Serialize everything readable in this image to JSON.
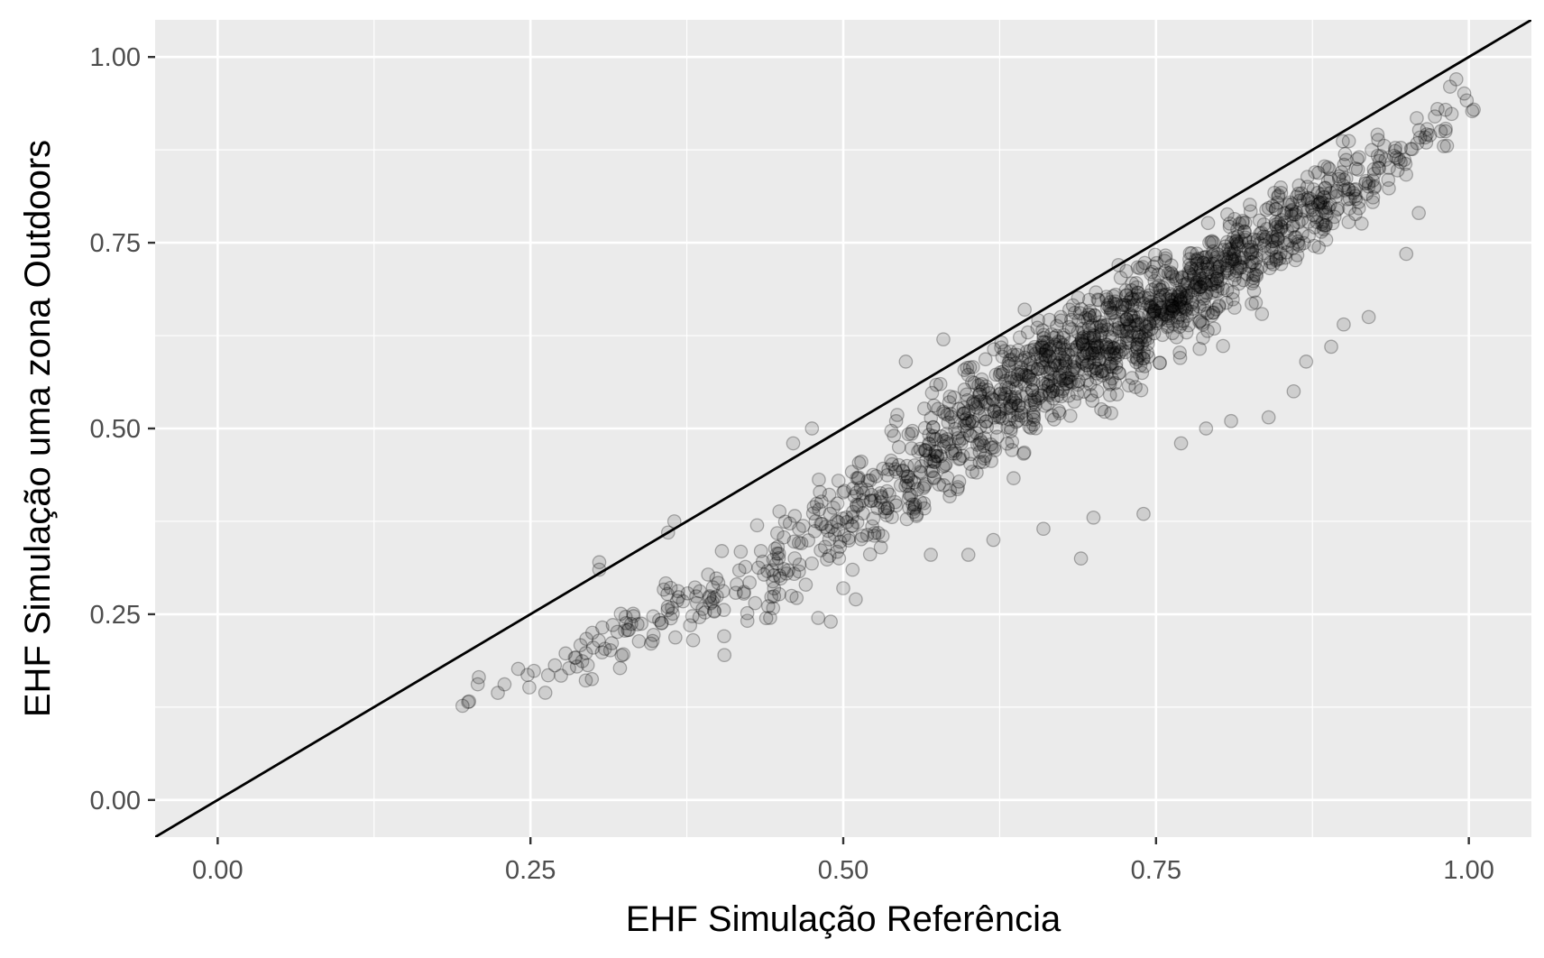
{
  "chart_data": {
    "type": "scatter",
    "title": "",
    "xlabel": "EHF Simulação Referência",
    "ylabel": "EHF Simulação uma zona Outdoors",
    "xlim": [
      -0.05,
      1.05
    ],
    "ylim": [
      -0.05,
      1.05
    ],
    "x_ticks": [
      0.0,
      0.25,
      0.5,
      0.75,
      1.0
    ],
    "x_tick_labels": [
      "0.00",
      "0.25",
      "0.50",
      "0.75",
      "1.00"
    ],
    "y_ticks": [
      0.0,
      0.25,
      0.5,
      0.75,
      1.0
    ],
    "y_tick_labels": [
      "0.00",
      "0.25",
      "0.50",
      "0.75",
      "1.00"
    ],
    "grid": true,
    "panel_background": "#ebebeb",
    "grid_color": "#ffffff",
    "point_color": "#000000",
    "point_fill_opacity": 0.12,
    "reference_line": {
      "slope": 1,
      "intercept": 0,
      "color": "#000000"
    },
    "density_bands": [
      {
        "x": 0.2,
        "y_center": 0.13,
        "spread": 0.005,
        "count": 3
      },
      {
        "x": 0.22,
        "y_center": 0.155,
        "spread": 0.01,
        "count": 4
      },
      {
        "x": 0.25,
        "y_center": 0.17,
        "spread": 0.02,
        "count": 6
      },
      {
        "x": 0.28,
        "y_center": 0.2,
        "spread": 0.03,
        "count": 12
      },
      {
        "x": 0.31,
        "y_center": 0.22,
        "spread": 0.035,
        "count": 16
      },
      {
        "x": 0.34,
        "y_center": 0.245,
        "spread": 0.035,
        "count": 18
      },
      {
        "x": 0.37,
        "y_center": 0.27,
        "spread": 0.04,
        "count": 20
      },
      {
        "x": 0.4,
        "y_center": 0.285,
        "spread": 0.04,
        "count": 22
      },
      {
        "x": 0.43,
        "y_center": 0.305,
        "spread": 0.045,
        "count": 26
      },
      {
        "x": 0.46,
        "y_center": 0.34,
        "spread": 0.05,
        "count": 32
      },
      {
        "x": 0.49,
        "y_center": 0.38,
        "spread": 0.05,
        "count": 40
      },
      {
        "x": 0.52,
        "y_center": 0.42,
        "spread": 0.055,
        "count": 50
      },
      {
        "x": 0.55,
        "y_center": 0.46,
        "spread": 0.06,
        "count": 60
      },
      {
        "x": 0.58,
        "y_center": 0.5,
        "spread": 0.06,
        "count": 75
      },
      {
        "x": 0.61,
        "y_center": 0.54,
        "spread": 0.06,
        "count": 90
      },
      {
        "x": 0.64,
        "y_center": 0.57,
        "spread": 0.06,
        "count": 110
      },
      {
        "x": 0.67,
        "y_center": 0.6,
        "spread": 0.055,
        "count": 120
      },
      {
        "x": 0.7,
        "y_center": 0.625,
        "spread": 0.055,
        "count": 130
      },
      {
        "x": 0.73,
        "y_center": 0.65,
        "spread": 0.055,
        "count": 130
      },
      {
        "x": 0.76,
        "y_center": 0.68,
        "spread": 0.05,
        "count": 120
      },
      {
        "x": 0.79,
        "y_center": 0.71,
        "spread": 0.05,
        "count": 110
      },
      {
        "x": 0.82,
        "y_center": 0.745,
        "spread": 0.045,
        "count": 95
      },
      {
        "x": 0.85,
        "y_center": 0.775,
        "spread": 0.045,
        "count": 80
      },
      {
        "x": 0.88,
        "y_center": 0.81,
        "spread": 0.04,
        "count": 65
      },
      {
        "x": 0.91,
        "y_center": 0.84,
        "spread": 0.04,
        "count": 45
      },
      {
        "x": 0.94,
        "y_center": 0.87,
        "spread": 0.035,
        "count": 25
      },
      {
        "x": 0.97,
        "y_center": 0.9,
        "spread": 0.03,
        "count": 14
      },
      {
        "x": 0.99,
        "y_center": 0.94,
        "spread": 0.02,
        "count": 6
      }
    ],
    "outlier_points": [
      [
        0.305,
        0.32
      ],
      [
        0.305,
        0.31
      ],
      [
        0.36,
        0.36
      ],
      [
        0.365,
        0.375
      ],
      [
        0.38,
        0.215
      ],
      [
        0.405,
        0.195
      ],
      [
        0.46,
        0.48
      ],
      [
        0.475,
        0.5
      ],
      [
        0.48,
        0.245
      ],
      [
        0.49,
        0.24
      ],
      [
        0.5,
        0.285
      ],
      [
        0.51,
        0.27
      ],
      [
        0.53,
        0.34
      ],
      [
        0.55,
        0.59
      ],
      [
        0.57,
        0.33
      ],
      [
        0.58,
        0.62
      ],
      [
        0.6,
        0.33
      ],
      [
        0.62,
        0.35
      ],
      [
        0.645,
        0.66
      ],
      [
        0.66,
        0.365
      ],
      [
        0.69,
        0.325
      ],
      [
        0.7,
        0.38
      ],
      [
        0.72,
        0.72
      ],
      [
        0.74,
        0.385
      ],
      [
        0.77,
        0.48
      ],
      [
        0.79,
        0.5
      ],
      [
        0.81,
        0.51
      ],
      [
        0.84,
        0.515
      ],
      [
        0.86,
        0.55
      ],
      [
        0.87,
        0.59
      ],
      [
        0.89,
        0.61
      ],
      [
        0.9,
        0.64
      ],
      [
        0.92,
        0.65
      ],
      [
        0.95,
        0.735
      ],
      [
        0.96,
        0.79
      ],
      [
        0.98,
        0.88
      ],
      [
        0.985,
        0.96
      ],
      [
        0.99,
        0.97
      ],
      [
        0.975,
        0.93
      ]
    ]
  }
}
